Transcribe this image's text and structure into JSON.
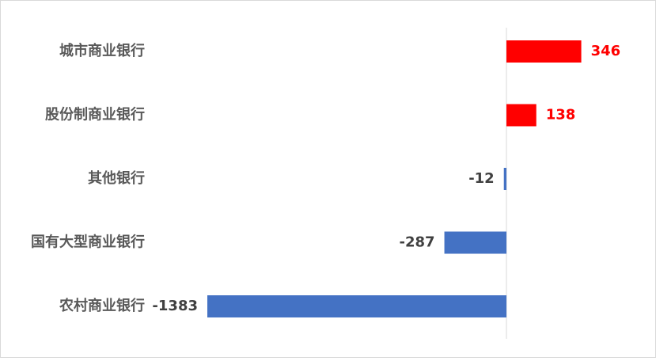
{
  "chart_data": {
    "type": "bar",
    "orientation": "horizontal",
    "categories": [
      "城市商业银行",
      "股份制商业银行",
      "其他银行",
      "国有大型商业银行",
      "农村商业银行"
    ],
    "values": [
      346,
      138,
      -12,
      -287,
      -1383
    ],
    "colors": [
      "#ff0000",
      "#ff0000",
      "#4472c4",
      "#4472c4",
      "#4472c4"
    ]
  }
}
